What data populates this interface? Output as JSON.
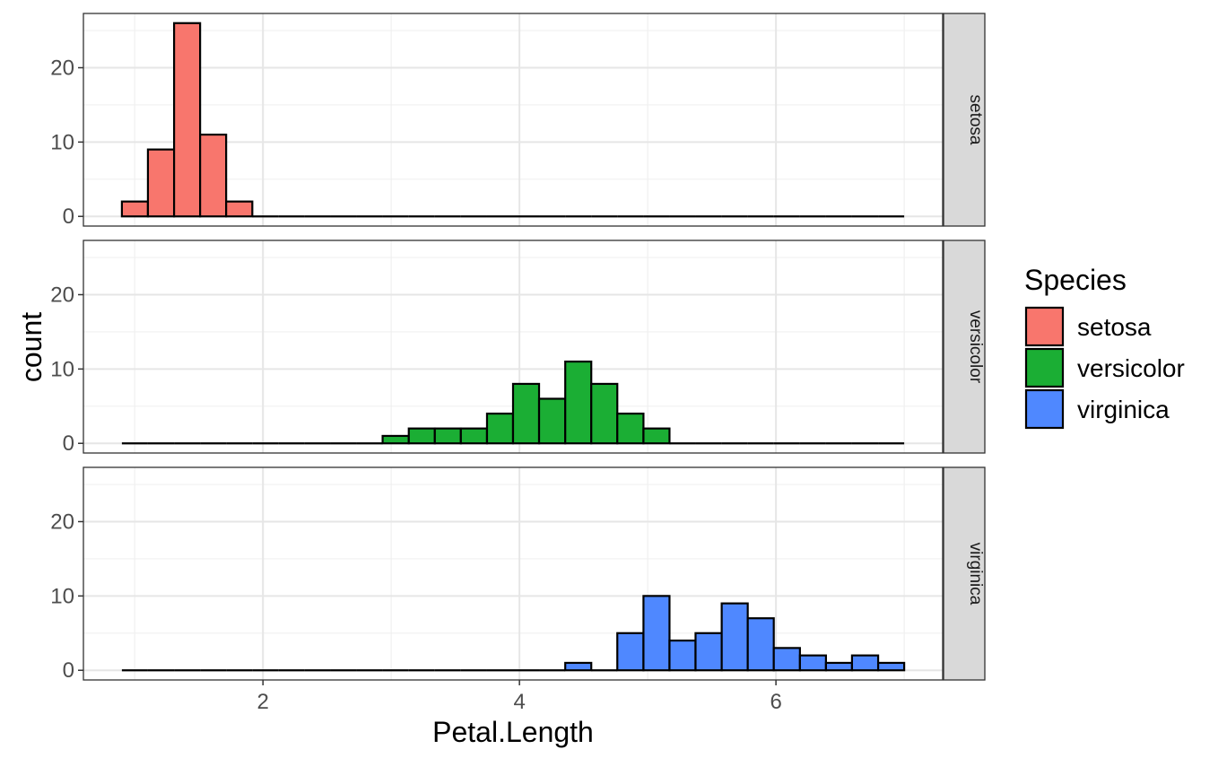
{
  "chart_data": {
    "type": "bar",
    "subtype": "faceted-histogram",
    "xlabel": "Petal.Length",
    "ylabel": "count",
    "xlim": [
      0.6,
      7.3
    ],
    "ylim": [
      -1.3,
      27.3
    ],
    "x_ticks": [
      2,
      4,
      6
    ],
    "x_tick_labels": [
      "2",
      "4",
      "6"
    ],
    "y_ticks": [
      0,
      10,
      20
    ],
    "y_tick_labels": [
      "0",
      "10",
      "20"
    ],
    "grid": true,
    "legend": {
      "title": "Species",
      "position": "right",
      "items": [
        {
          "label": "setosa",
          "color": "#F8766D"
        },
        {
          "label": "versicolor",
          "color": "#1BAE34"
        },
        {
          "label": "virginica",
          "color": "#4F88FF"
        }
      ]
    },
    "bin_edges": [
      0.9,
      1.103,
      1.307,
      1.51,
      1.713,
      1.917,
      2.12,
      2.323,
      2.527,
      2.73,
      2.933,
      3.137,
      3.34,
      3.543,
      3.747,
      3.95,
      4.153,
      4.357,
      4.56,
      4.763,
      4.967,
      5.17,
      5.373,
      5.577,
      5.78,
      5.983,
      6.187,
      6.39,
      6.593,
      6.797,
      7.0
    ],
    "series": [
      {
        "name": "setosa",
        "strip": "setosa",
        "color": "#F8766D",
        "counts": [
          2,
          9,
          26,
          11,
          2,
          0,
          0,
          0,
          0,
          0,
          0,
          0,
          0,
          0,
          0,
          0,
          0,
          0,
          0,
          0,
          0,
          0,
          0,
          0,
          0,
          0,
          0,
          0,
          0,
          0
        ]
      },
      {
        "name": "versicolor",
        "strip": "versicolor",
        "color": "#1BAE34",
        "counts": [
          0,
          0,
          0,
          0,
          0,
          0,
          0,
          0,
          0,
          0,
          1,
          2,
          2,
          2,
          4,
          8,
          6,
          11,
          8,
          4,
          2,
          0,
          0,
          0,
          0,
          0,
          0,
          0,
          0,
          0
        ]
      },
      {
        "name": "virginica",
        "strip": "virginica",
        "color": "#4F88FF",
        "counts": [
          0,
          0,
          0,
          0,
          0,
          0,
          0,
          0,
          0,
          0,
          0,
          0,
          0,
          0,
          0,
          0,
          0,
          1,
          0,
          5,
          10,
          4,
          5,
          9,
          7,
          3,
          2,
          1,
          2,
          1
        ]
      }
    ]
  }
}
